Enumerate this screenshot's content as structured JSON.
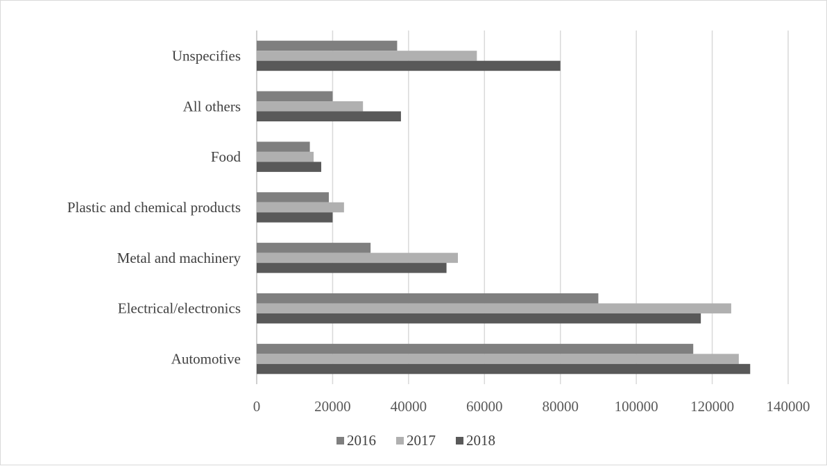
{
  "chart_data": {
    "type": "bar",
    "orientation": "horizontal",
    "categories": [
      "Automotive",
      "Electrical/electronics",
      "Metal and machinery",
      "Plastic and chemical products",
      "Food",
      "All others",
      "Unspecifies"
    ],
    "series": [
      {
        "name": "2016",
        "color": "#7f7f7f",
        "values": [
          115000,
          90000,
          30000,
          19000,
          14000,
          20000,
          37000
        ]
      },
      {
        "name": "2017",
        "color": "#b0b0b0",
        "values": [
          127000,
          125000,
          53000,
          23000,
          15000,
          28000,
          58000
        ]
      },
      {
        "name": "2018",
        "color": "#595959",
        "values": [
          130000,
          117000,
          50000,
          20000,
          17000,
          38000,
          80000
        ]
      }
    ],
    "xlim": [
      0,
      140000
    ],
    "xticks": [
      0,
      20000,
      40000,
      60000,
      80000,
      100000,
      120000,
      140000
    ],
    "xtick_labels": [
      "0",
      "20000",
      "40000",
      "60000",
      "80000",
      "100000",
      "120000",
      "140000"
    ],
    "grid": "vertical",
    "legend_position": "bottom",
    "title": "",
    "xlabel": "",
    "ylabel": ""
  }
}
